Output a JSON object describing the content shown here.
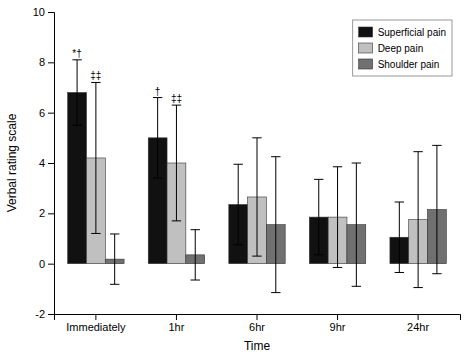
{
  "chart_data": {
    "type": "bar",
    "categories": [
      "Immediately",
      "1hr",
      "6hr",
      "9hr",
      "24hr"
    ],
    "series": [
      {
        "name": "Superficial pain",
        "color": "#111111",
        "values": [
          6.8,
          5.0,
          2.35,
          1.85,
          1.05
        ],
        "errors": [
          1.3,
          1.6,
          1.6,
          1.5,
          1.4
        ]
      },
      {
        "name": "Deep pain",
        "color": "#c0c0c0",
        "values": [
          4.2,
          4.0,
          2.65,
          1.85,
          1.75
        ],
        "errors": [
          3.0,
          2.3,
          2.35,
          2.0,
          2.7
        ]
      },
      {
        "name": "Shoulder pain",
        "color": "#707070",
        "values": [
          0.18,
          0.35,
          1.55,
          1.55,
          2.15
        ],
        "errors": [
          1.0,
          1.0,
          2.7,
          2.45,
          2.55
        ]
      }
    ],
    "annotations": [
      {
        "text": "*†",
        "category": "Immediately",
        "series": "Superficial pain"
      },
      {
        "text": "‡‡",
        "category": "Immediately",
        "series": "Deep pain"
      },
      {
        "text": "†",
        "category": "1hr",
        "series": "Superficial pain"
      },
      {
        "text": "‡‡",
        "category": "1hr",
        "series": "Deep pain"
      }
    ],
    "xlabel": "Time",
    "ylabel": "Verbal rating scale",
    "ylim": [
      -2,
      10
    ],
    "yticks": [
      -2,
      0,
      2,
      4,
      6,
      8,
      10
    ],
    "legend": "upper right"
  }
}
